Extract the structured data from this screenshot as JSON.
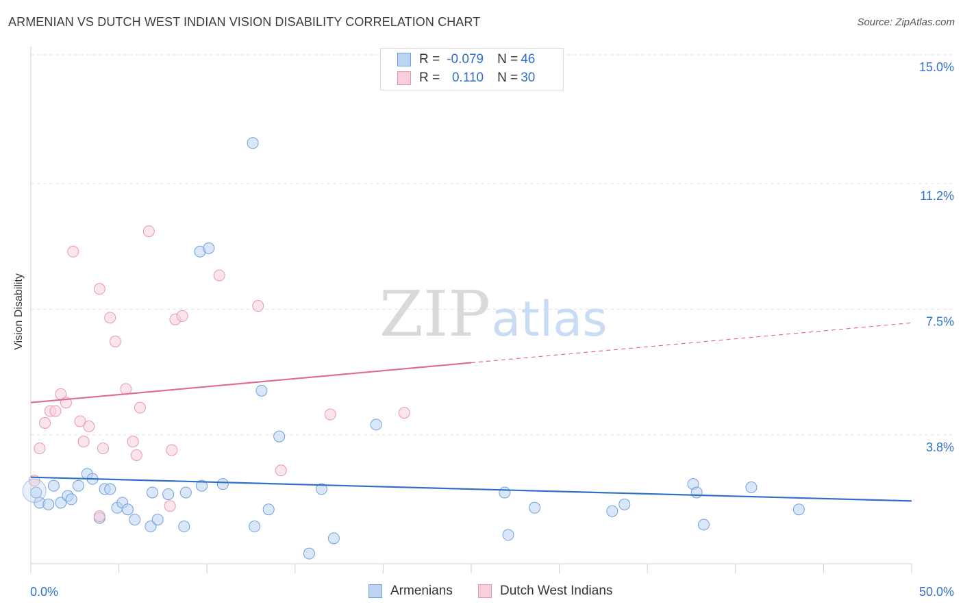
{
  "header": {
    "title": "ARMENIAN VS DUTCH WEST INDIAN VISION DISABILITY CORRELATION CHART",
    "source": "Source: ZipAtlas.com"
  },
  "watermark": {
    "zip": "ZIP",
    "atlas": "atlas"
  },
  "legend": {
    "rows": [
      {
        "r_label": "R =",
        "r_value": "-0.079",
        "n_label": "N =",
        "n_value": "46",
        "color": "#6f9fdc"
      },
      {
        "r_label": "R =",
        "r_value": "0.110",
        "n_label": "N =",
        "n_value": "30",
        "color": "#e995b0"
      }
    ]
  },
  "bottom_legend": [
    {
      "label": "Armenians",
      "color": "#6f9fdc"
    },
    {
      "label": "Dutch West Indians",
      "color": "#e995b0"
    }
  ],
  "chart_data": {
    "type": "scatter",
    "title": "ARMENIAN VS DUTCH WEST INDIAN VISION DISABILITY CORRELATION CHART",
    "xlabel": "",
    "ylabel": "Vision Disability",
    "xlim": [
      0,
      50
    ],
    "ylim": [
      0,
      15
    ],
    "x_tick_labels": [
      "0.0%",
      "50.0%"
    ],
    "y_ticks": [
      3.8,
      7.5,
      11.2,
      15.0
    ],
    "y_tick_labels": [
      "3.8%",
      "7.5%",
      "11.2%",
      "15.0%"
    ],
    "grid": true,
    "series": [
      {
        "name": "Armenians",
        "color": "#6f9fdc",
        "trend": {
          "x0": 0,
          "y0": 2.55,
          "x1": 50,
          "y1": 1.85,
          "dashed_from": null
        },
        "points": [
          [
            0.3,
            2.1
          ],
          [
            0.5,
            1.8
          ],
          [
            1.0,
            1.75
          ],
          [
            1.3,
            2.3
          ],
          [
            1.7,
            1.8
          ],
          [
            2.1,
            2.0
          ],
          [
            2.3,
            1.9
          ],
          [
            2.7,
            2.3
          ],
          [
            3.2,
            2.65
          ],
          [
            3.5,
            2.5
          ],
          [
            3.9,
            1.35
          ],
          [
            4.2,
            2.2
          ],
          [
            4.5,
            2.2
          ],
          [
            4.9,
            1.65
          ],
          [
            5.2,
            1.8
          ],
          [
            5.5,
            1.6
          ],
          [
            5.9,
            1.3
          ],
          [
            6.8,
            1.1
          ],
          [
            6.9,
            2.1
          ],
          [
            7.2,
            1.3
          ],
          [
            7.8,
            2.05
          ],
          [
            8.7,
            1.1
          ],
          [
            8.8,
            2.1
          ],
          [
            9.6,
            9.2
          ],
          [
            9.7,
            2.3
          ],
          [
            10.1,
            9.3
          ],
          [
            10.9,
            2.35
          ],
          [
            12.6,
            12.4
          ],
          [
            12.7,
            1.1
          ],
          [
            13.1,
            5.1
          ],
          [
            13.5,
            1.6
          ],
          [
            14.1,
            3.75
          ],
          [
            15.8,
            0.3
          ],
          [
            16.5,
            2.2
          ],
          [
            17.2,
            0.75
          ],
          [
            19.6,
            4.1
          ],
          [
            26.9,
            2.1
          ],
          [
            27.1,
            0.85
          ],
          [
            28.6,
            1.65
          ],
          [
            33.0,
            1.55
          ],
          [
            33.7,
            1.75
          ],
          [
            37.6,
            2.35
          ],
          [
            37.8,
            2.1
          ],
          [
            38.2,
            1.15
          ],
          [
            40.9,
            2.25
          ],
          [
            43.6,
            1.6
          ]
        ]
      },
      {
        "name": "Dutch West Indians",
        "color": "#e995b0",
        "trend": {
          "x0": 0,
          "y0": 4.75,
          "x1": 50,
          "y1": 7.1,
          "dashed_from": 25
        },
        "points": [
          [
            0.2,
            2.45
          ],
          [
            0.5,
            3.4
          ],
          [
            0.8,
            4.15
          ],
          [
            1.1,
            4.5
          ],
          [
            1.4,
            4.5
          ],
          [
            1.7,
            5.0
          ],
          [
            2.0,
            4.75
          ],
          [
            2.4,
            9.2
          ],
          [
            2.8,
            4.2
          ],
          [
            3.0,
            3.6
          ],
          [
            3.3,
            4.05
          ],
          [
            3.9,
            1.4
          ],
          [
            3.9,
            8.1
          ],
          [
            4.1,
            3.4
          ],
          [
            4.5,
            7.25
          ],
          [
            4.8,
            6.55
          ],
          [
            5.4,
            5.15
          ],
          [
            5.8,
            3.6
          ],
          [
            6.0,
            3.2
          ],
          [
            6.2,
            4.6
          ],
          [
            6.7,
            9.8
          ],
          [
            7.9,
            1.7
          ],
          [
            8.0,
            3.35
          ],
          [
            8.2,
            7.2
          ],
          [
            8.6,
            7.3
          ],
          [
            10.7,
            8.5
          ],
          [
            12.9,
            7.6
          ],
          [
            14.2,
            2.75
          ],
          [
            17.0,
            4.4
          ],
          [
            21.2,
            4.45
          ]
        ]
      }
    ]
  }
}
